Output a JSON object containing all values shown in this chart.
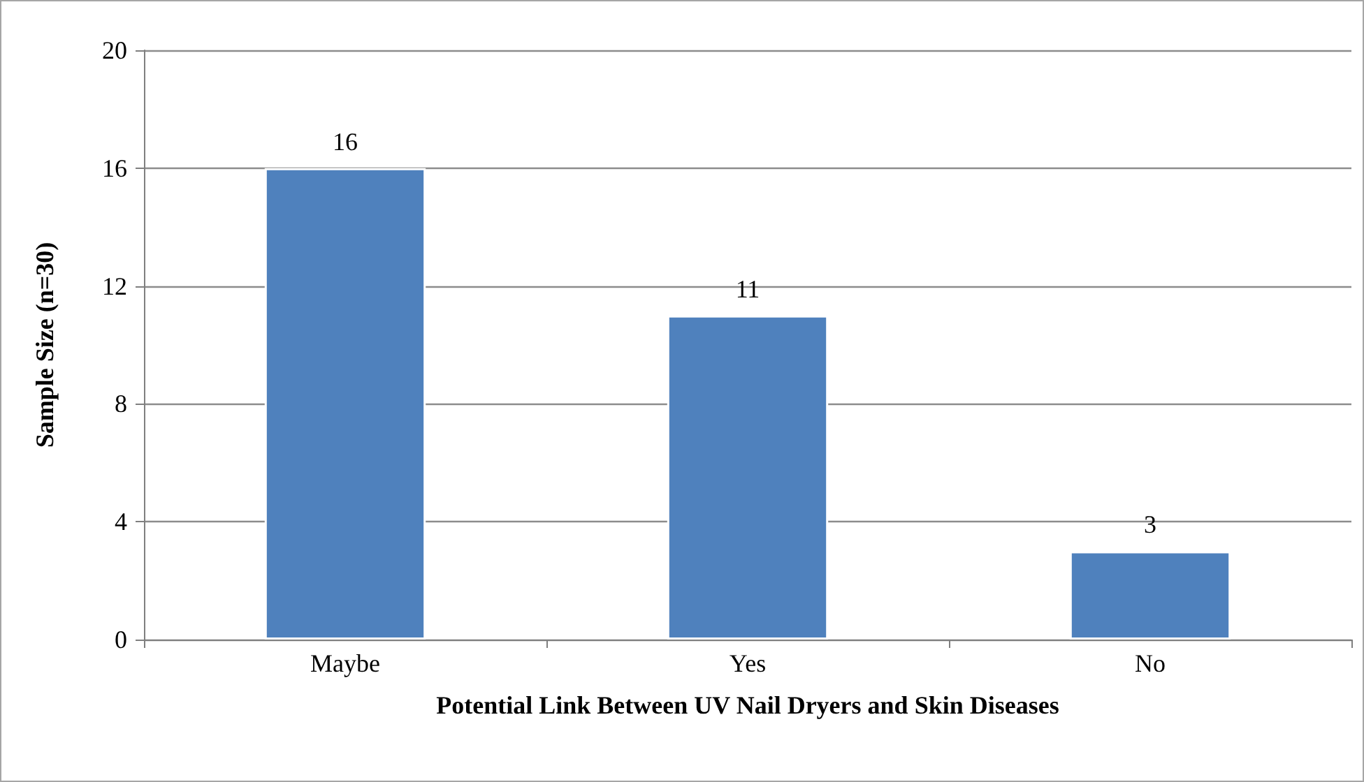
{
  "chart_data": {
    "type": "bar",
    "xlabel": "Potential Link Between UV Nail Dryers and Skin Diseases",
    "ylabel": "Sample Size (n=30)",
    "categories": [
      "Maybe",
      "Yes",
      "No"
    ],
    "values": [
      16,
      11,
      3
    ],
    "color": "#4f81bd",
    "ylim": [
      0,
      20
    ],
    "yticks": [
      0,
      4,
      8,
      12,
      16,
      20
    ],
    "grid": "y",
    "data_labels": true
  }
}
